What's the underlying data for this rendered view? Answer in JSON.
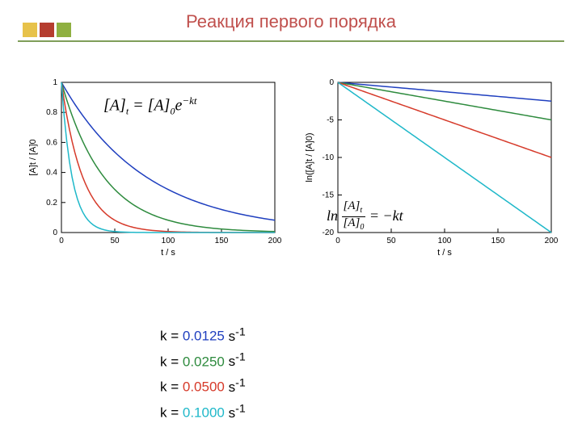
{
  "title": "Реакция первого порядка",
  "decor_colors": [
    "#e7c24a",
    "#b53d2f",
    "#8fb041"
  ],
  "hr_color": "#7f9e5a",
  "series": [
    {
      "k": 0.0125,
      "color": "#1f3fbf",
      "label": "0.0125"
    },
    {
      "k": 0.025,
      "color": "#2e8b3e",
      "label": "0.0250"
    },
    {
      "k": 0.05,
      "color": "#d63a2a",
      "label": "0.0500"
    },
    {
      "k": 0.1,
      "color": "#1fb8c9",
      "label": "0.1000"
    }
  ],
  "chart_left": {
    "type": "line",
    "xlim": [
      0,
      200
    ],
    "ylim": [
      0,
      1
    ],
    "xticks": [
      0,
      50,
      100,
      150,
      200
    ],
    "yticks": [
      0,
      0.2,
      0.4,
      0.6,
      0.8,
      1
    ],
    "xlabel": "t / s",
    "ylabel": "[A]t / [A]0",
    "equation": "[A]t = [A]0 e^(−kt)",
    "bg": "#ffffff",
    "grid": "#000000",
    "line_width": 1.5
  },
  "chart_right": {
    "type": "line",
    "xlim": [
      0,
      200
    ],
    "ylim": [
      -20,
      0
    ],
    "xticks": [
      0,
      50,
      100,
      150,
      200
    ],
    "yticks": [
      -20,
      -15,
      -10,
      -5,
      0
    ],
    "xlabel": "t / s",
    "ylabel": "ln([A]t / [A]0)",
    "equation": "ln([A]t/[A]0) = −kt",
    "bg": "#ffffff",
    "grid": "#000000",
    "line_width": 1.5
  },
  "legend_prefix": "k = ",
  "legend_suffix_html": " s<sup>-1</sup>",
  "legend_fontsize": 17
}
